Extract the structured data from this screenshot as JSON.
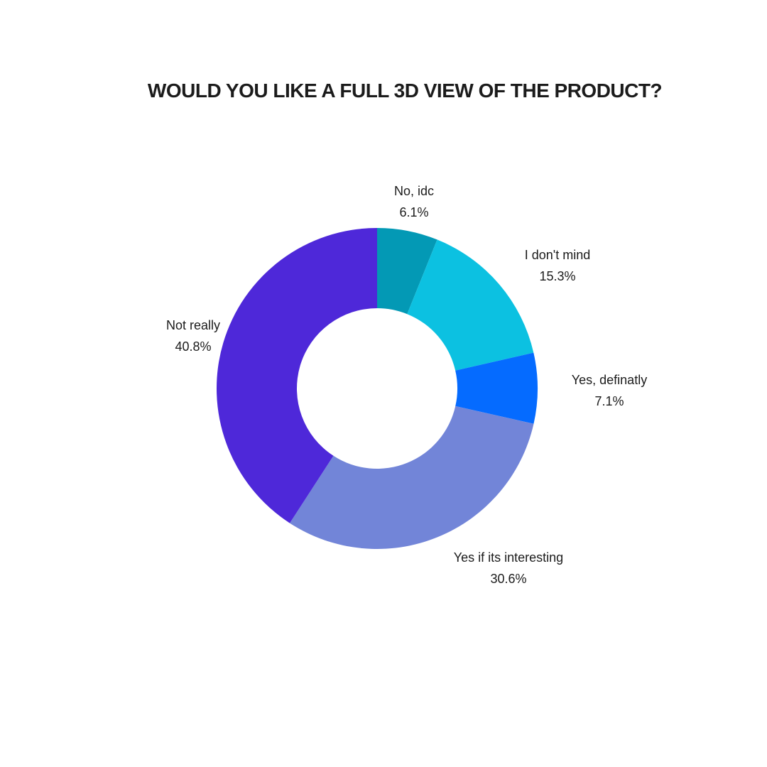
{
  "chart_data": {
    "type": "pie",
    "variant": "donut",
    "title": "WOULD YOU LIKE A FULL 3D VIEW OF THE PRODUCT?",
    "slices": [
      {
        "label": "No, idc",
        "percent_label": "6.1%",
        "value": 6.1,
        "color": "#0399B5"
      },
      {
        "label": "I don't mind",
        "percent_label": "15.3%",
        "value": 15.3,
        "color": "#0CC1E1"
      },
      {
        "label": "Yes, definatly",
        "percent_label": "7.1%",
        "value": 7.1,
        "color": "#056BFF"
      },
      {
        "label": "Yes if its interesting",
        "percent_label": "30.6%",
        "value": 30.6,
        "color": "#7285D8"
      },
      {
        "label": "Not really",
        "percent_label": "40.8%",
        "value": 40.8,
        "color": "#4E28D9"
      }
    ],
    "start": "top, clockwise",
    "legend": "none"
  }
}
